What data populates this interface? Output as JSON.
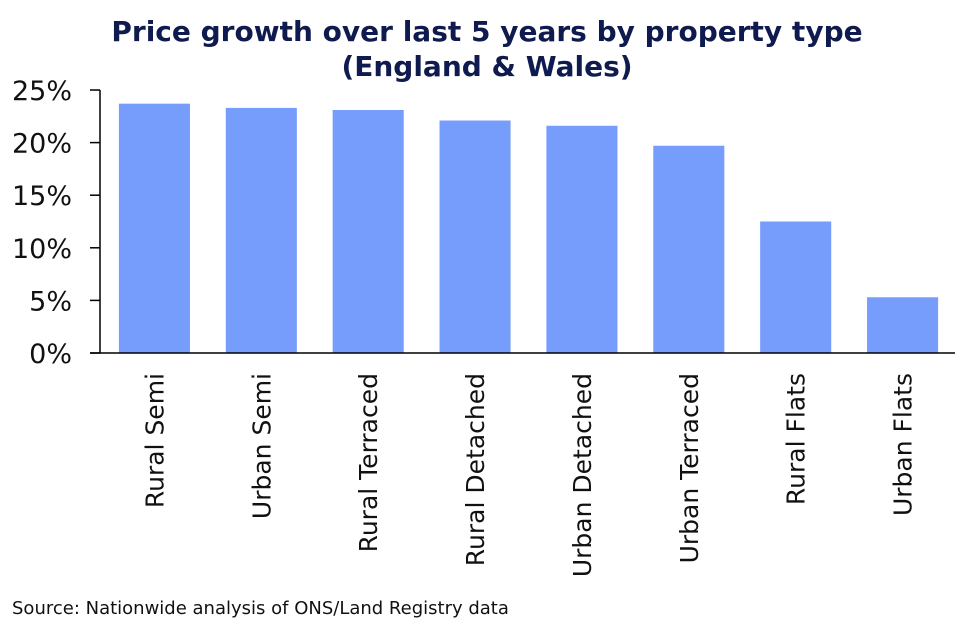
{
  "chart_data": {
    "type": "bar",
    "title_line1": "Price growth over last 5 years by property type",
    "title_line2": "(England & Wales)",
    "categories": [
      "Rural Semi",
      "Urban Semi",
      "Rural Terraced",
      "Rural Detached",
      "Urban Detached",
      "Urban Terraced",
      "Rural Flats",
      "Urban Flats"
    ],
    "values": [
      23.7,
      23.3,
      23.1,
      22.1,
      21.6,
      19.7,
      12.5,
      5.3
    ],
    "xlabel": "",
    "ylabel": "",
    "ylim": [
      0,
      25
    ],
    "yticks": [
      0,
      5,
      10,
      15,
      20,
      25
    ],
    "ytick_labels": [
      "0%",
      "5%",
      "10%",
      "15%",
      "20%",
      "25%"
    ],
    "grid": false,
    "legend": "none",
    "bar_color": "#769cfc",
    "source": "Source: Nationwide analysis of ONS/Land Registry data"
  }
}
